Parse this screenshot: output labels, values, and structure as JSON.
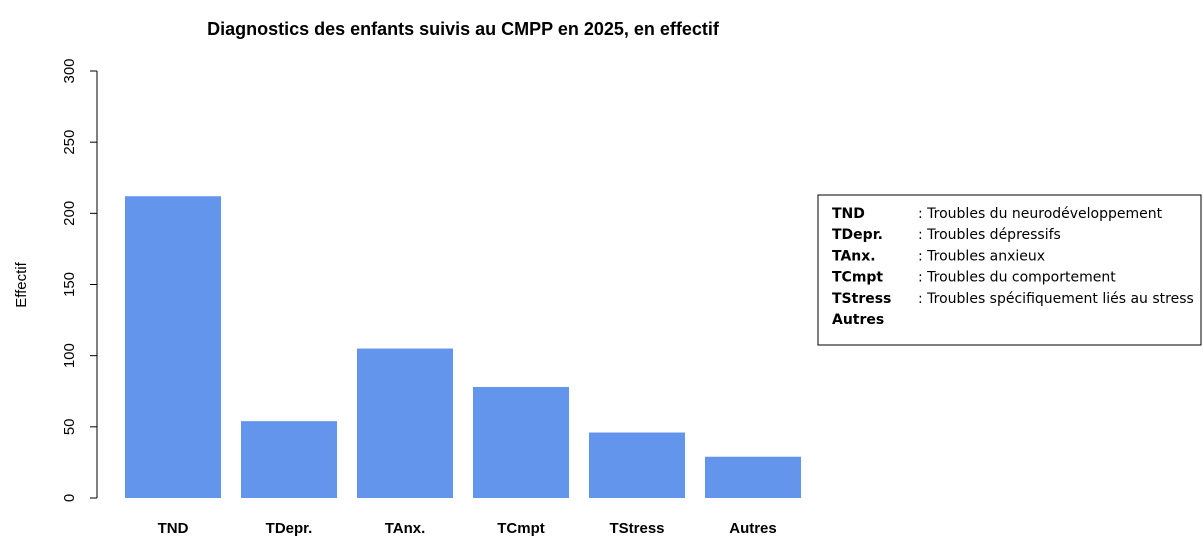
{
  "chart_data": {
    "type": "bar",
    "title": "Diagnostics des enfants suivis au CMPP en 2025, en effectif",
    "y_label": "Effectif",
    "categories": [
      "TND",
      "TDepr.",
      "TAnx.",
      "TCmpt",
      "TStress",
      "Autres"
    ],
    "values": [
      212,
      54,
      105,
      78,
      46,
      29
    ],
    "color": "#6495ed",
    "ylim": [
      0,
      300
    ],
    "yticks": [
      0,
      50,
      100,
      150,
      200,
      250,
      300
    ],
    "grid": false,
    "legend": [
      {
        "abbr": "TND",
        "desc": ": Troubles du neurodéveloppement"
      },
      {
        "abbr": "TDepr.",
        "desc": ": Troubles dépressifs"
      },
      {
        "abbr": "TAnx.",
        "desc": ": Troubles anxieux"
      },
      {
        "abbr": "TCmpt",
        "desc": ": Troubles du comportement"
      },
      {
        "abbr": "TStress",
        "desc": ": Troubles spécifiquement liés au stress"
      },
      {
        "abbr": "Autres"
      }
    ]
  }
}
